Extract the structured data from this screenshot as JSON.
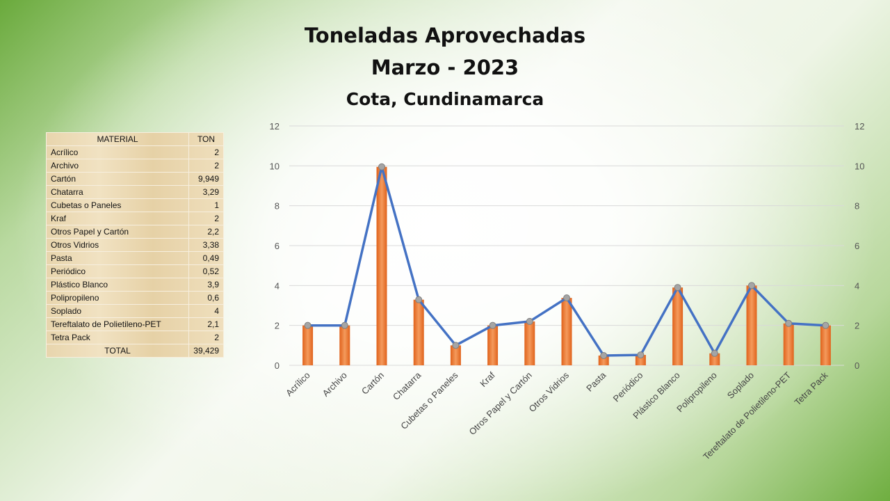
{
  "title": {
    "line1": "Toneladas Aprovechadas",
    "line2": "Marzo - 2023",
    "line3": "Cota, Cundinamarca"
  },
  "table": {
    "headers": [
      "MATERIAL",
      "TON"
    ],
    "rows": [
      {
        "name": "Acrílico",
        "value": "2"
      },
      {
        "name": "Archivo",
        "value": "2"
      },
      {
        "name": "Cartón",
        "value": "9,949"
      },
      {
        "name": "Chatarra",
        "value": "3,29"
      },
      {
        "name": "Cubetas o Paneles",
        "value": "1"
      },
      {
        "name": "Kraf",
        "value": "2"
      },
      {
        "name": "Otros Papel y Cartón",
        "value": "2,2"
      },
      {
        "name": "Otros Vidrios",
        "value": "3,38"
      },
      {
        "name": "Pasta",
        "value": "0,49"
      },
      {
        "name": "Periódico",
        "value": "0,52"
      },
      {
        "name": "Plástico Blanco",
        "value": "3,9"
      },
      {
        "name": "Polipropileno",
        "value": "0,6"
      },
      {
        "name": "Soplado",
        "value": "4"
      },
      {
        "name": "Tereftalato de Polietileno-PET",
        "value": "2,1"
      },
      {
        "name": "Tetra Pack",
        "value": "2"
      }
    ],
    "total_label": "TOTAL",
    "total_value": "39,429"
  },
  "colors": {
    "bar": "#ed7d31",
    "bar_dark": "#e0621b",
    "line": "#4472c4",
    "marker": "#a5a5a5",
    "grid": "#d9d9d9"
  },
  "chart_data": {
    "type": "bar",
    "categories": [
      "Acrílico",
      "Archivo",
      "Cartón",
      "Chatarra",
      "Cubetas o Paneles",
      "Kraf",
      "Otros Papel y Cartón",
      "Otros Vidrios",
      "Pasta",
      "Periódico",
      "Plástico Blanco",
      "Polipropileno",
      "Soplado",
      "Tereftalato de Polietileno-PET",
      "Tetra Pack"
    ],
    "series": [
      {
        "type": "bar",
        "values": [
          2,
          2,
          9.949,
          3.29,
          1,
          2,
          2.2,
          3.38,
          0.49,
          0.52,
          3.9,
          0.6,
          4,
          2.1,
          2
        ]
      },
      {
        "type": "line",
        "axis": "secondary",
        "values": [
          2,
          2,
          9.949,
          3.29,
          1,
          2,
          2.2,
          3.38,
          0.49,
          0.52,
          3.9,
          0.6,
          4,
          2.1,
          2
        ]
      }
    ],
    "ylim": [
      0,
      12
    ],
    "y_ticks": [
      0,
      2,
      4,
      6,
      8,
      10,
      12
    ],
    "y2lim": [
      0,
      12
    ],
    "grid": true,
    "xlabel": "",
    "ylabel": ""
  }
}
